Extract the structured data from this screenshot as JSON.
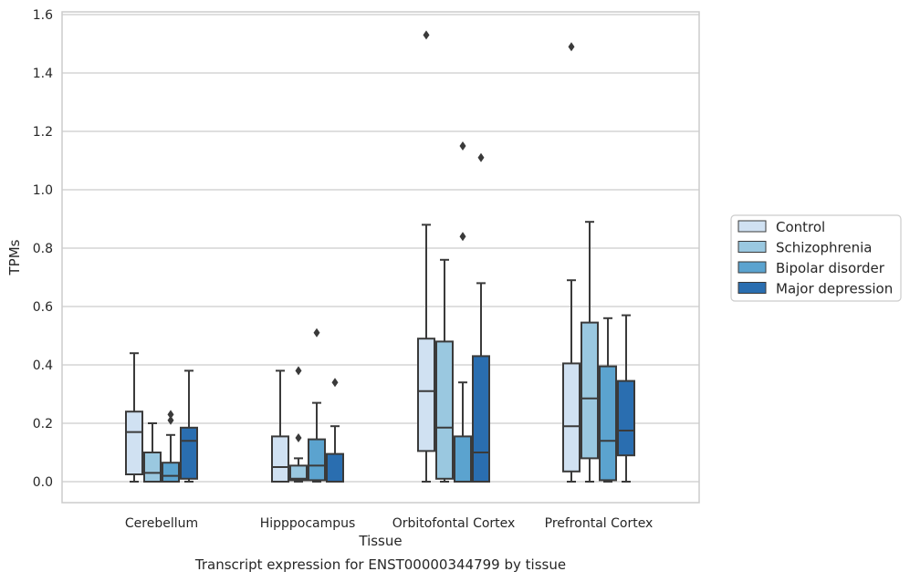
{
  "chart_data": {
    "type": "boxplot",
    "title": "",
    "caption": "Transcript expression for ENST00000344799 by tissue",
    "xlabel": "Tissue",
    "ylabel": "TPMs",
    "ylim": [
      -0.07,
      1.61
    ],
    "yticks": [
      "0.0",
      "0.2",
      "0.4",
      "0.6",
      "0.8",
      "1.0",
      "1.2",
      "1.4",
      "1.6"
    ],
    "grid": true,
    "legend_position": "right",
    "categories": [
      "Cerebellum",
      "Hipppocampus",
      "Orbitofontal Cortex",
      "Prefrontal Cortex"
    ],
    "series": [
      {
        "name": "Control",
        "color": "#d0e1f2",
        "boxes": [
          {
            "whisker_low": 0.0,
            "q1": 0.025,
            "median": 0.17,
            "q3": 0.24,
            "whisker_high": 0.44,
            "outliers": []
          },
          {
            "whisker_low": 0.0,
            "q1": 0.0,
            "median": 0.05,
            "q3": 0.155,
            "whisker_high": 0.38,
            "outliers": []
          },
          {
            "whisker_low": 0.0,
            "q1": 0.105,
            "median": 0.31,
            "q3": 0.49,
            "whisker_high": 0.88,
            "outliers": [
              1.53
            ]
          },
          {
            "whisker_low": 0.0,
            "q1": 0.035,
            "median": 0.19,
            "q3": 0.405,
            "whisker_high": 0.69,
            "outliers": [
              1.49
            ]
          }
        ]
      },
      {
        "name": "Schizophrenia",
        "color": "#9ac8e0",
        "boxes": [
          {
            "whisker_low": 0.0,
            "q1": 0.0,
            "median": 0.03,
            "q3": 0.1,
            "whisker_high": 0.2,
            "outliers": []
          },
          {
            "whisker_low": 0.0,
            "q1": 0.005,
            "median": 0.01,
            "q3": 0.055,
            "whisker_high": 0.08,
            "outliers": [
              0.15,
              0.38
            ]
          },
          {
            "whisker_low": 0.0,
            "q1": 0.01,
            "median": 0.185,
            "q3": 0.48,
            "whisker_high": 0.76,
            "outliers": []
          },
          {
            "whisker_low": 0.0,
            "q1": 0.08,
            "median": 0.285,
            "q3": 0.545,
            "whisker_high": 0.89,
            "outliers": []
          }
        ]
      },
      {
        "name": "Bipolar disorder",
        "color": "#5ba3cf",
        "boxes": [
          {
            "whisker_low": 0.0,
            "q1": 0.0,
            "median": 0.02,
            "q3": 0.065,
            "whisker_high": 0.16,
            "outliers": [
              0.21,
              0.23
            ]
          },
          {
            "whisker_low": 0.0,
            "q1": 0.005,
            "median": 0.055,
            "q3": 0.145,
            "whisker_high": 0.27,
            "outliers": [
              0.51
            ]
          },
          {
            "whisker_low": 0.0,
            "q1": 0.0,
            "median": 0.0,
            "q3": 0.155,
            "whisker_high": 0.34,
            "outliers": [
              0.84,
              1.15
            ]
          },
          {
            "whisker_low": 0.0,
            "q1": 0.005,
            "median": 0.14,
            "q3": 0.395,
            "whisker_high": 0.56,
            "outliers": []
          }
        ]
      },
      {
        "name": "Major depression",
        "color": "#2a6eb0",
        "boxes": [
          {
            "whisker_low": 0.0,
            "q1": 0.01,
            "median": 0.14,
            "q3": 0.185,
            "whisker_high": 0.38,
            "outliers": []
          },
          {
            "whisker_low": 0.0,
            "q1": 0.0,
            "median": 0.0,
            "q3": 0.095,
            "whisker_high": 0.19,
            "outliers": [
              0.34
            ]
          },
          {
            "whisker_low": 0.0,
            "q1": 0.0,
            "median": 0.1,
            "q3": 0.43,
            "whisker_high": 0.68,
            "outliers": [
              1.11
            ]
          },
          {
            "whisker_low": 0.0,
            "q1": 0.09,
            "median": 0.175,
            "q3": 0.345,
            "whisker_high": 0.57,
            "outliers": []
          }
        ]
      }
    ]
  },
  "colors": {
    "line": "#3a3a3a",
    "grid": "#cccccc",
    "frame": "#cccccc"
  }
}
